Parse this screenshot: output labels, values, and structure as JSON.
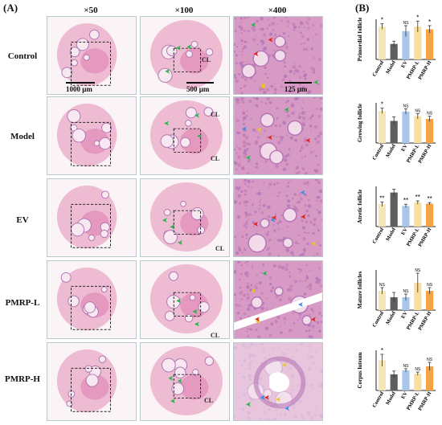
{
  "figure": {
    "panel_a_label": "(A)",
    "panel_b_label": "(B)",
    "magnifications": [
      "×50",
      "×100",
      "×400"
    ],
    "groups": [
      "Control",
      "Model",
      "EV",
      "PMRP-L",
      "PMRP-H"
    ],
    "scale_bars": {
      "x50": "1000 μm",
      "x100": "500 μm",
      "x400": "125 μm"
    },
    "tissue_label": "CL"
  },
  "colors": {
    "Control": "#f5e6b8",
    "Model": "#5f5f5f",
    "EV": "#a9c6ec",
    "PMRP-L": "#f8dfa0",
    "PMRP-H": "#f5a444",
    "tissue_pink": "#e9a9c6",
    "tissue_purple": "#b476b6",
    "arrow_green": "#2bb24c",
    "arrow_yellow": "#f0c419",
    "arrow_red": "#e2231a",
    "arrow_blue": "#3a8ee6"
  },
  "chart_data": [
    {
      "type": "bar",
      "ylabel": "Primordial follicle",
      "categories": [
        "Control",
        "Model",
        "EV",
        "PMRP-L",
        "PMRP-H"
      ],
      "values": [
        18,
        8.5,
        15.5,
        18,
        16.5
      ],
      "errors": [
        1.5,
        1.5,
        3,
        3,
        2
      ],
      "ylim": [
        0,
        22
      ],
      "annotations": [
        "*",
        "",
        "NS",
        "*",
        "*"
      ]
    },
    {
      "type": "bar",
      "ylabel": "Growing follicle",
      "categories": [
        "Control",
        "Model",
        "EV",
        "PMRP-L",
        "PMRP-H"
      ],
      "values": [
        24,
        16.5,
        23.5,
        20,
        18
      ],
      "errors": [
        2,
        3,
        2,
        2,
        2
      ],
      "ylim": [
        0,
        30
      ],
      "annotations": [
        "*",
        "",
        "NS",
        "NS",
        "NS"
      ]
    },
    {
      "type": "bar",
      "ylabel": "Atretic follicle",
      "categories": [
        "Control",
        "Model",
        "EV",
        "PMRP-L",
        "PMRP-H"
      ],
      "values": [
        20,
        30.5,
        18.5,
        21.5,
        20.5
      ],
      "errors": [
        2,
        3,
        1.5,
        1.5,
        1
      ],
      "ylim": [
        0,
        36
      ],
      "annotations": [
        "**",
        "",
        "**",
        "**",
        "**"
      ]
    },
    {
      "type": "bar",
      "ylabel": "Mature follicles",
      "categories": [
        "Control",
        "Model",
        "EV",
        "PMRP-L",
        "PMRP-H"
      ],
      "values": [
        1.2,
        0.8,
        0.8,
        1.7,
        1.2
      ],
      "errors": [
        0.2,
        0.3,
        0.2,
        0.6,
        0.2
      ],
      "ylim": [
        0,
        2.5
      ],
      "annotations": [
        "NS",
        "",
        "NS",
        "NS",
        "NS"
      ]
    },
    {
      "type": "bar",
      "ylabel": "Corpus luteum",
      "categories": [
        "Control",
        "Model",
        "EV",
        "PMRP-L",
        "PMRP-H"
      ],
      "values": [
        9,
        4.8,
        6,
        5,
        7.2
      ],
      "errors": [
        1.8,
        1,
        0.5,
        0.5,
        1.2
      ],
      "ylim": [
        0,
        12
      ],
      "annotations": [
        "*",
        "",
        "NS",
        "NS",
        "NS"
      ]
    }
  ]
}
